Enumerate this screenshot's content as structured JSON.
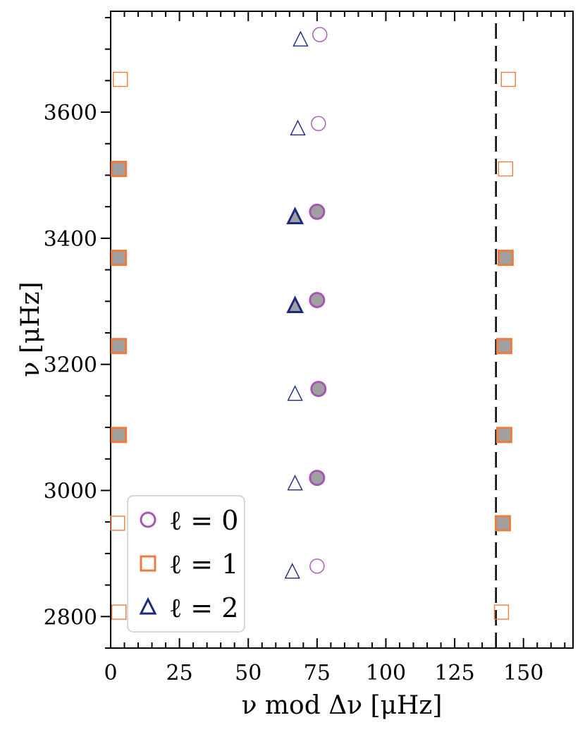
{
  "chart_data": {
    "type": "scatter",
    "xlabel": "ν mod Δν [μHz]",
    "ylabel": "ν [μHz]",
    "xlim": [
      0,
      168
    ],
    "ylim": [
      2750,
      3760
    ],
    "x_ticks": [
      0,
      25,
      50,
      75,
      100,
      125,
      150
    ],
    "x_tick_labels": [
      "0",
      "25",
      "50",
      "75",
      "100",
      "125",
      "150"
    ],
    "y_ticks": [
      2800,
      3000,
      3200,
      3400,
      3600
    ],
    "y_tick_labels": [
      "2800",
      "3000",
      "3200",
      "3400",
      "3600"
    ],
    "grid": false,
    "legend_position": "bottom-left",
    "reference_line": {
      "x": 140,
      "style": "dashed",
      "color": "#000000"
    },
    "series": [
      {
        "name": "ℓ = 0",
        "marker": "circle",
        "color": "#a655b5",
        "fill": "#a0a0a0",
        "points": [
          {
            "x": 76.0,
            "y": 3723,
            "filled": false
          },
          {
            "x": 75.5,
            "y": 3582,
            "filled": false
          },
          {
            "x": 75.0,
            "y": 3442,
            "filled": true
          },
          {
            "x": 75.0,
            "y": 3302,
            "filled": true
          },
          {
            "x": 75.5,
            "y": 3161,
            "filled": true
          },
          {
            "x": 75.0,
            "y": 3020,
            "filled": true
          },
          {
            "x": 75.0,
            "y": 2880,
            "filled": false
          }
        ]
      },
      {
        "name": "ℓ = 1",
        "marker": "square",
        "color": "#f07b3f",
        "fill": "#a0a0a0",
        "points": [
          {
            "x": 3.5,
            "y": 3652,
            "filled": false
          },
          {
            "x": 144.5,
            "y": 3652,
            "filled": false
          },
          {
            "x": 3.0,
            "y": 3510,
            "filled": true
          },
          {
            "x": 143.5,
            "y": 3510,
            "filled": false
          },
          {
            "x": 3.0,
            "y": 3369,
            "filled": true
          },
          {
            "x": 143.5,
            "y": 3369,
            "filled": true
          },
          {
            "x": 3.0,
            "y": 3229,
            "filled": true
          },
          {
            "x": 143.0,
            "y": 3229,
            "filled": true
          },
          {
            "x": 3.0,
            "y": 3088,
            "filled": true
          },
          {
            "x": 143.0,
            "y": 3088,
            "filled": true
          },
          {
            "x": 2.5,
            "y": 2948,
            "filled": false
          },
          {
            "x": 142.5,
            "y": 2948,
            "filled": true
          },
          {
            "x": 3.0,
            "y": 2807,
            "filled": false
          },
          {
            "x": 142.0,
            "y": 2807,
            "filled": false
          }
        ]
      },
      {
        "name": "ℓ = 2",
        "marker": "triangle",
        "color": "#1b2a80",
        "fill": "#a0a0a0",
        "points": [
          {
            "x": 69.0,
            "y": 3715,
            "filled": false
          },
          {
            "x": 68.0,
            "y": 3574,
            "filled": false
          },
          {
            "x": 67.0,
            "y": 3434,
            "filled": true
          },
          {
            "x": 67.0,
            "y": 3293,
            "filled": true
          },
          {
            "x": 67.0,
            "y": 3153,
            "filled": false
          },
          {
            "x": 67.0,
            "y": 3011,
            "filled": false
          },
          {
            "x": 66.0,
            "y": 2871,
            "filled": false
          }
        ]
      }
    ]
  }
}
